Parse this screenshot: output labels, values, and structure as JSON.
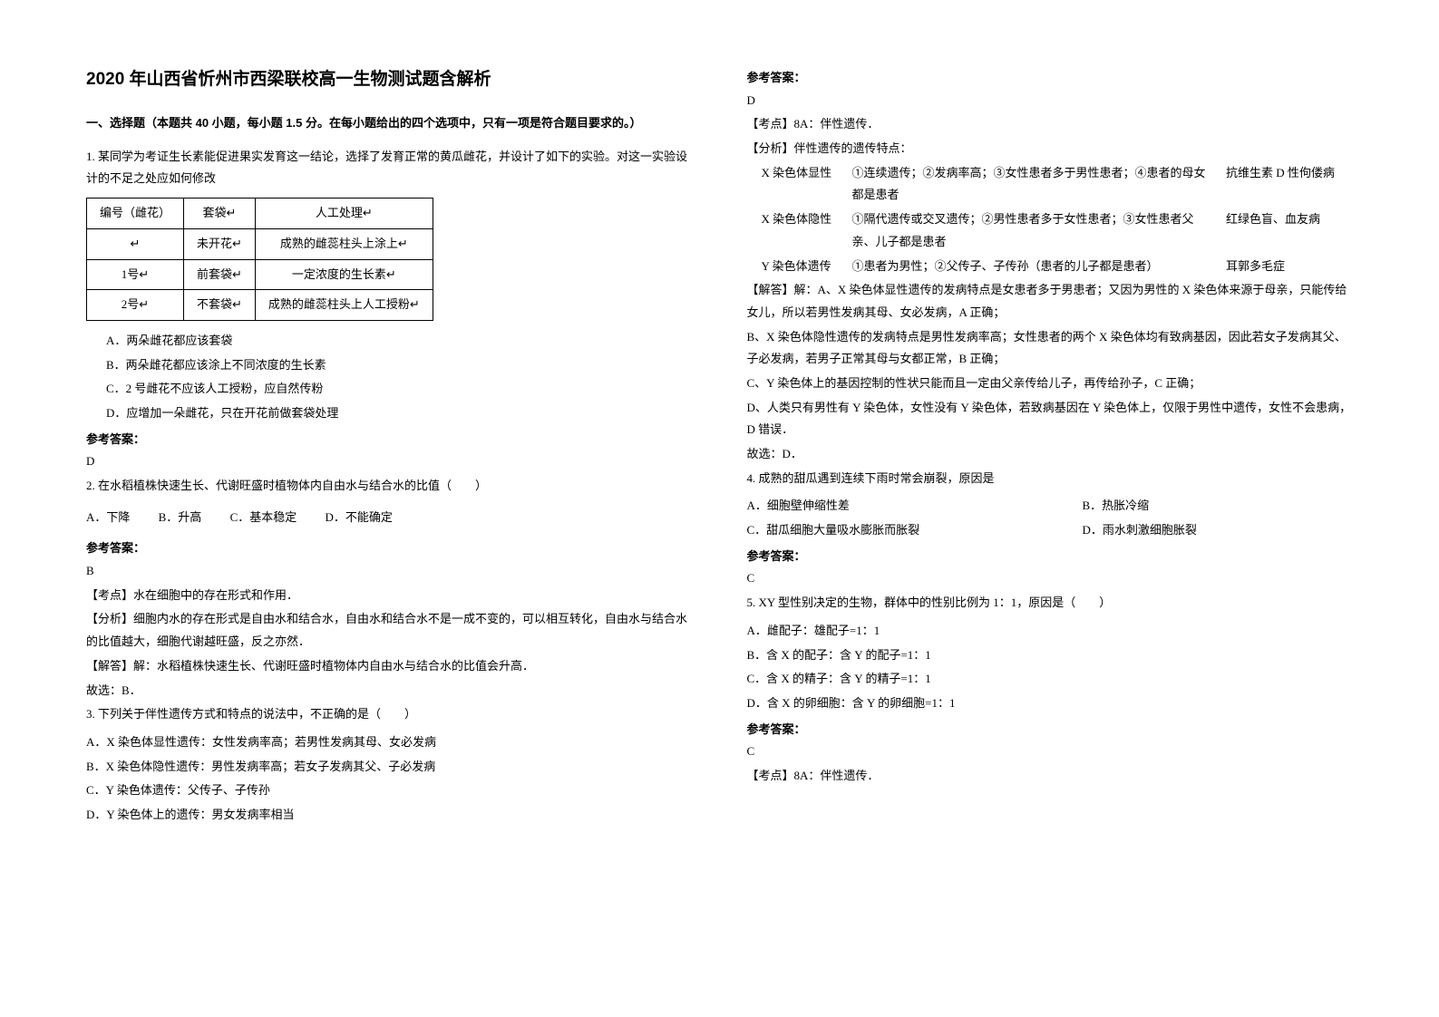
{
  "title": "2020 年山西省忻州市西梁联校高一生物测试题含解析",
  "section_heading": "一、选择题（本题共 40 小题，每小题 1.5 分。在每小题给出的四个选项中，只有一项是符合题目要求的。）",
  "q1": {
    "stem1": "1. 某同学为考证生长素能促进果实发育这一结论，选择了发育正常的黄瓜雌花，并设计了如下的实验。对这一实验设计的不足之处应如何修改",
    "table": {
      "headers": [
        "编号（雌花）",
        "套袋↵",
        "人工处理↵"
      ],
      "rows": [
        [
          "↵",
          "未开花↵",
          "成熟的雌蕊柱头上涂上↵"
        ],
        [
          "1号↵",
          "前套袋↵",
          "一定浓度的生长素↵"
        ],
        [
          "2号↵",
          "不套袋↵",
          "成熟的雌蕊柱头上人工授粉↵"
        ]
      ]
    },
    "optA": "A．两朵雌花都应该套袋",
    "optB": "B．两朵雌花都应该涂上不同浓度的生长素",
    "optC": "C．2 号雌花不应该人工授粉，应自然传粉",
    "optD": "D．应增加一朵雌花，只在开花前做套袋处理",
    "answer_label": "参考答案：",
    "answer": "D"
  },
  "q2": {
    "stem": "2. 在水稻植株快速生长、代谢旺盛时植物体内自由水与结合水的比值（　　）",
    "opts": {
      "a": "A．下降",
      "b": "B．升高",
      "c": "C．基本稳定",
      "d": "D．不能确定"
    },
    "answer_label": "参考答案：",
    "answer": "B",
    "p1": "【考点】水在细胞中的存在形式和作用．",
    "p2": "【分析】细胞内水的存在形式是自由水和结合水，自由水和结合水不是一成不变的，可以相互转化，自由水与结合水的比值越大，细胞代谢越旺盛，反之亦然．",
    "p3": "【解答】解：水稻植株快速生长、代谢旺盛时植物体内自由水与结合水的比值会升高．",
    "p4": "故选：B．"
  },
  "q3": {
    "stem": "3. 下列关于伴性遗传方式和特点的说法中，不正确的是（　　）",
    "optA": "A．X 染色体显性遗传：女性发病率高；若男性发病其母、女必发病",
    "optB": "B．X 染色体隐性遗传：男性发病率高；若女子发病其父、子必发病",
    "optC": "C．Y 染色体遗传：父传子、子传孙",
    "optD": "D．Y 染色体上的遗传：男女发病率相当"
  },
  "right": {
    "answer_label": "参考答案：",
    "answer": "D",
    "p1": "【考点】8A：伴性遗传．",
    "p2": "【分析】伴性遗传的遗传特点：",
    "r1": {
      "c1": "X 染色体显性",
      "c2": "①连续遗传；②发病率高；③女性患者多于男性患者；④患者的母女都是患者",
      "c3": "抗维生素 D 性佝偻病"
    },
    "r2": {
      "c1": "X 染色体隐性",
      "c2": "①隔代遗传或交叉遗传；②男性患者多于女性患者；③女性患者父亲、儿子都是患者",
      "c3": "红绿色盲、血友病"
    },
    "r3": {
      "c1": "Y 染色体遗传",
      "c2": "①患者为男性；②父传子、子传孙（患者的儿子都是患者）",
      "c3": "耳郭多毛症"
    },
    "p3": "【解答】解：A、X 染色体显性遗传的发病特点是女患者多于男患者；又因为男性的 X 染色体来源于母亲，只能传给女儿，所以若男性发病其母、女必发病，A 正确；",
    "p4": "B、X 染色体隐性遗传的发病特点是男性发病率高；女性患者的两个 X 染色体均有致病基因，因此若女子发病其父、子必发病，若男子正常其母与女都正常，B 正确；",
    "p5": "C、Y 染色体上的基因控制的性状只能而且一定由父亲传给儿子，再传给孙子，C 正确；",
    "p6": "D、人类只有男性有 Y 染色体，女性没有 Y 染色体，若致病基因在 Y 染色体上，仅限于男性中遗传，女性不会患病，D 错误．",
    "p7": "故选：D．"
  },
  "q4": {
    "stem": "4. 成熟的甜瓜遇到连续下雨时常会崩裂，原因是",
    "optA": "A．细胞壁伸缩性差",
    "optB": "B．热胀冷缩",
    "optC": "C．甜瓜细胞大量吸水膨胀而胀裂",
    "optD": "D．雨水刺激细胞胀裂",
    "answer_label": "参考答案：",
    "answer": "C"
  },
  "q5": {
    "stem": "5. XY 型性别决定的生物，群体中的性别比例为 1：1，原因是（　　）",
    "optA": "A．雌配子：雄配子=1：1",
    "optB": "B．含 X 的配子：含 Y 的配子=1：1",
    "optC": "C．含 X 的精子：含 Y 的精子=1：1",
    "optD": "D．含 X 的卵细胞：含 Y 的卵细胞=1：1",
    "answer_label": "参考答案：",
    "answer": "C",
    "p1": "【考点】8A：伴性遗传．"
  }
}
